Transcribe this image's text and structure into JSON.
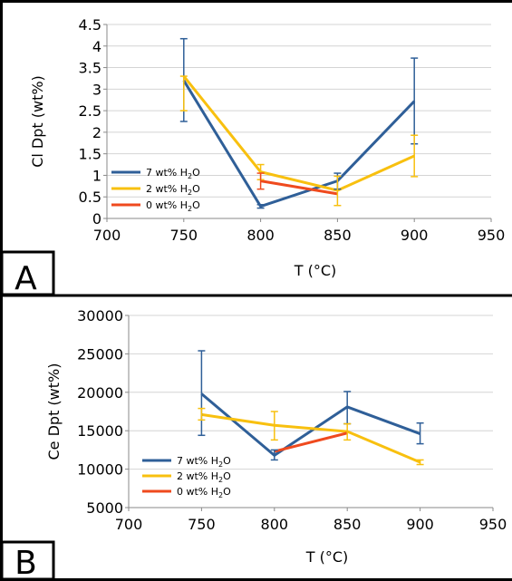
{
  "chart_data": [
    {
      "type": "line",
      "panel_label": "A",
      "xlabel": "T (°C)",
      "ylabel": "Cl Dpt (wt%)",
      "xlim": [
        700,
        950
      ],
      "ylim": [
        0,
        4.5
      ],
      "x_ticks": [
        "700",
        "750",
        "800",
        "850",
        "900",
        "950"
      ],
      "y_ticks": [
        "0",
        "0.5",
        "1",
        "1.5",
        "2",
        "2.5",
        "3",
        "3.5",
        "4",
        "4.5"
      ],
      "grid": "horizontal",
      "legend_position": "bottom-left",
      "series": [
        {
          "name": "7 wt% H",
          "name_sub": "2",
          "name_suffix": "O",
          "color": "#2f5f98",
          "points": [
            {
              "x": 750,
              "y": 3.2,
              "lo": 2.25,
              "hi": 4.17
            },
            {
              "x": 800,
              "y": 0.28,
              "lo": 0.24,
              "hi": 0.32
            },
            {
              "x": 850,
              "y": 0.87,
              "lo": 0.68,
              "hi": 1.05
            },
            {
              "x": 900,
              "y": 2.72,
              "lo": 1.73,
              "hi": 3.72
            }
          ]
        },
        {
          "name": "2 wt% H",
          "name_sub": "2",
          "name_suffix": "O",
          "color": "#f8c00f",
          "points": [
            {
              "x": 750,
              "y": 3.3,
              "lo": 2.5,
              "hi": 3.3
            },
            {
              "x": 800,
              "y": 1.08,
              "lo": 0.9,
              "hi": 1.25
            },
            {
              "x": 850,
              "y": 0.65,
              "lo": 0.3,
              "hi": 0.98
            },
            {
              "x": 900,
              "y": 1.45,
              "lo": 0.97,
              "hi": 1.93
            }
          ]
        },
        {
          "name": "0 wt% H",
          "name_sub": "2",
          "name_suffix": "O",
          "color": "#ef4a1e",
          "points": [
            {
              "x": 800,
              "y": 0.87,
              "lo": 0.68,
              "hi": 1.05
            },
            {
              "x": 850,
              "y": 0.57,
              "lo": 0.57,
              "hi": 0.57
            }
          ]
        }
      ]
    },
    {
      "type": "line",
      "panel_label": "B",
      "xlabel": "T (°C)",
      "ylabel": "Ce Dpt (wt%)",
      "xlim": [
        700,
        950
      ],
      "ylim": [
        5000,
        30000
      ],
      "x_ticks": [
        "700",
        "750",
        "800",
        "850",
        "900",
        "950"
      ],
      "y_ticks": [
        "5000",
        "10000",
        "15000",
        "20000",
        "25000",
        "30000"
      ],
      "grid": "horizontal",
      "legend_position": "bottom-left",
      "series": [
        {
          "name": "7 wt% H",
          "name_sub": "2",
          "name_suffix": "O",
          "color": "#2f5f98",
          "points": [
            {
              "x": 750,
              "y": 19800,
              "lo": 14400,
              "hi": 25400
            },
            {
              "x": 800,
              "y": 11800,
              "lo": 11200,
              "hi": 12500
            },
            {
              "x": 850,
              "y": 18100,
              "lo": 15900,
              "hi": 20100
            },
            {
              "x": 900,
              "y": 14600,
              "lo": 13300,
              "hi": 16000
            }
          ]
        },
        {
          "name": "2 wt% H",
          "name_sub": "2",
          "name_suffix": "O",
          "color": "#f8c00f",
          "points": [
            {
              "x": 750,
              "y": 17100,
              "lo": 16400,
              "hi": 17900
            },
            {
              "x": 800,
              "y": 15700,
              "lo": 13800,
              "hi": 17500
            },
            {
              "x": 850,
              "y": 14900,
              "lo": 13800,
              "hi": 15900
            },
            {
              "x": 900,
              "y": 10900,
              "lo": 10600,
              "hi": 11200
            }
          ]
        },
        {
          "name": "0 wt% H",
          "name_sub": "2",
          "name_suffix": "O",
          "color": "#ef4a1e",
          "points": [
            {
              "x": 800,
              "y": 12300,
              "lo": 12300,
              "hi": 12300
            },
            {
              "x": 850,
              "y": 14700,
              "lo": 14700,
              "hi": 14700
            }
          ]
        }
      ]
    }
  ]
}
